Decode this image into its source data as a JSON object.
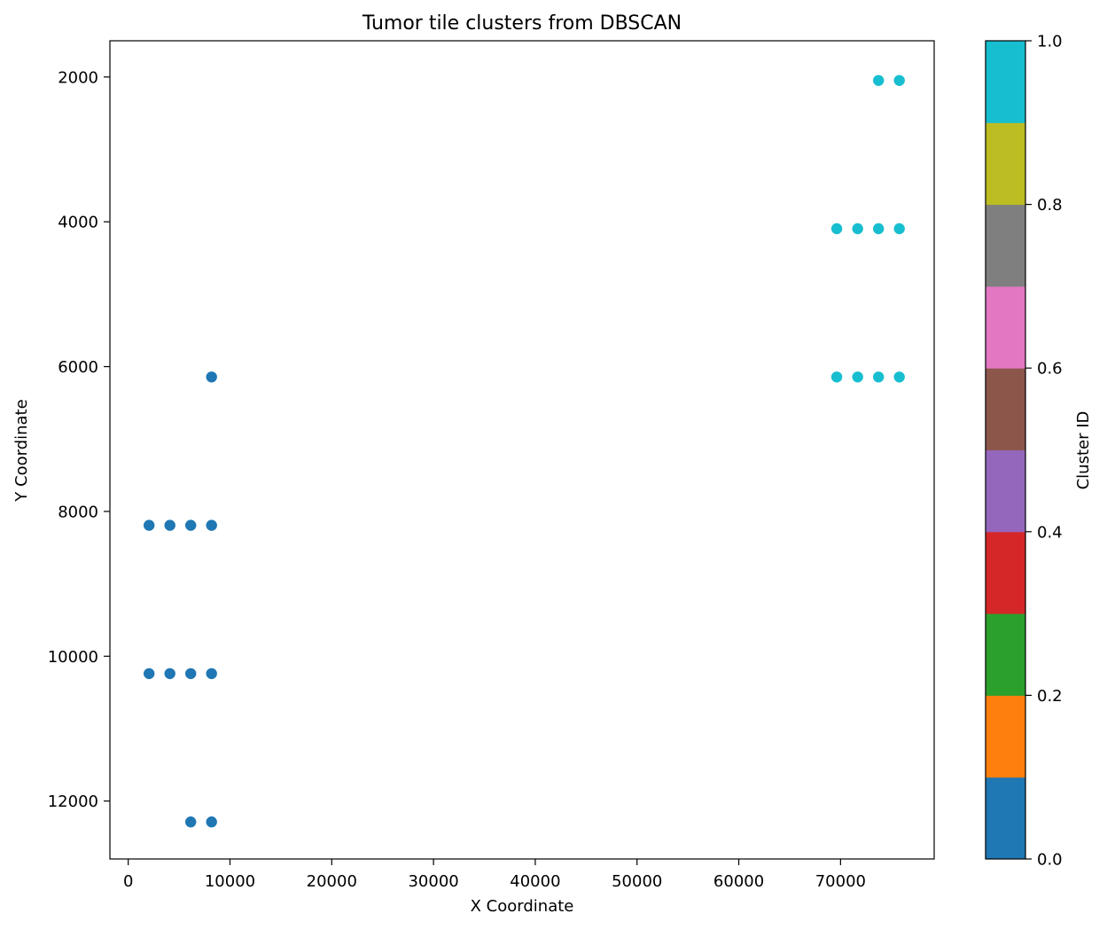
{
  "chart_data": {
    "type": "scatter",
    "title": "Tumor tile clusters from DBSCAN",
    "xlabel": "X Coordinate",
    "ylabel": "Y Coordinate",
    "xlim": [
      -1800,
      79200
    ],
    "ylim": [
      12800,
      1500
    ],
    "y_inverted": true,
    "grid": false,
    "xticks": [
      0,
      10000,
      20000,
      30000,
      40000,
      50000,
      60000,
      70000
    ],
    "yticks": [
      2000,
      4000,
      6000,
      8000,
      10000,
      12000
    ],
    "series": [
      {
        "cluster": 0,
        "color": "#1f77b4",
        "points": [
          [
            8192,
            6144
          ],
          [
            2048,
            8192
          ],
          [
            4096,
            8192
          ],
          [
            6144,
            8192
          ],
          [
            8192,
            8192
          ],
          [
            2048,
            10240
          ],
          [
            4096,
            10240
          ],
          [
            6144,
            10240
          ],
          [
            8192,
            10240
          ],
          [
            6144,
            12288
          ],
          [
            8192,
            12288
          ]
        ]
      },
      {
        "cluster": 1,
        "color": "#17becf",
        "points": [
          [
            73728,
            2048
          ],
          [
            75776,
            2048
          ],
          [
            69632,
            4096
          ],
          [
            71680,
            4096
          ],
          [
            73728,
            4096
          ],
          [
            75776,
            4096
          ],
          [
            69632,
            6144
          ],
          [
            71680,
            6144
          ],
          [
            73728,
            6144
          ],
          [
            75776,
            6144
          ]
        ]
      }
    ],
    "colorbar": {
      "label": "Cluster ID",
      "range": [
        0,
        1
      ],
      "ticks": [
        "0.0",
        "0.2",
        "0.4",
        "0.6",
        "0.8",
        "1.0"
      ],
      "colors": [
        "#1f77b4",
        "#ff7f0e",
        "#2ca02c",
        "#d62728",
        "#9467bd",
        "#8c564b",
        "#e377c2",
        "#7f7f7f",
        "#bcbd22",
        "#17becf"
      ]
    }
  }
}
